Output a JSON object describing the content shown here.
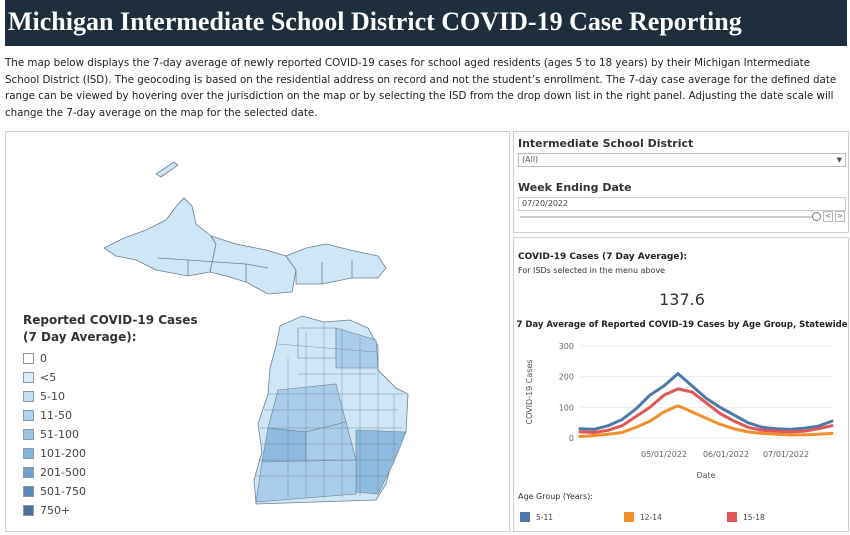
{
  "header": {
    "title": "Michigan Intermediate School District COVID-19 Case Reporting"
  },
  "intro": {
    "text": "The map below displays the 7-day average of newly reported COVID-19 cases for school aged residents (ages 5 to 18 years) by their Michigan Intermediate School District (ISD). The geocoding is based on the residential address on record and not the student’s enrollment. The 7-day case average for the defined date range can be viewed by hovering over the jurisdiction on the map or by selecting the ISD from the drop down list in the right panel. Adjusting the date scale will change the 7-day average on the map for the selected date."
  },
  "map": {
    "legend": {
      "title_line1": "Reported COVID-19 Cases",
      "title_line2": "(7 Day Average):",
      "items": [
        {
          "label": "0",
          "color": "#ffffff"
        },
        {
          "label": "<5",
          "color": "#dcedf8"
        },
        {
          "label": "5-10",
          "color": "#c4e1f2"
        },
        {
          "label": "11-50",
          "color": "#afd3ec"
        },
        {
          "label": "51-100",
          "color": "#9ac4e3"
        },
        {
          "label": "101-200",
          "color": "#86b4d8"
        },
        {
          "label": "201-500",
          "color": "#729fc9"
        },
        {
          "label": "501-750",
          "color": "#5f88b5"
        },
        {
          "label": "750+",
          "color": "#4b6e9b"
        }
      ]
    },
    "colors": {
      "low": "#cfe6f6",
      "mid": "#a9cdea",
      "high": "#8ebbdf",
      "border": "#6b7f90"
    }
  },
  "filters": {
    "isd_label": "Intermediate School District",
    "isd_value": "(All)",
    "week_label": "Week Ending Date",
    "week_value": "07/20/2022"
  },
  "cases_panel": {
    "title": "COVID-19 Cases (7 Day Average):",
    "subtitle": "For ISDs selected in the menu above",
    "value": "137.6",
    "chart_title": "7 Day Average of Reported COVID-19 Cases by Age Group, Statewide",
    "group_title": "Age Group (Years):"
  },
  "chart_data": {
    "type": "line",
    "title": "7 Day Average of Reported COVID-19 Cases by Age Group, Statewide",
    "xlabel": "Date",
    "ylabel": "COVID-19 Cases",
    "ylim": [
      0,
      300
    ],
    "yticks": [
      0,
      100,
      200,
      300
    ],
    "xticks": [
      "05/01/2022",
      "06/01/2022",
      "07/01/2022"
    ],
    "x": [
      "03/20/2022",
      "03/27/2022",
      "04/03/2022",
      "04/10/2022",
      "04/17/2022",
      "04/24/2022",
      "05/01/2022",
      "05/08/2022",
      "05/15/2022",
      "05/22/2022",
      "05/29/2022",
      "06/05/2022",
      "06/12/2022",
      "06/19/2022",
      "06/26/2022",
      "07/03/2022",
      "07/10/2022",
      "07/17/2022",
      "07/24/2022"
    ],
    "series": [
      {
        "name": "5-11",
        "color": "#4e79a7",
        "values": [
          30,
          28,
          40,
          60,
          95,
          140,
          170,
          210,
          170,
          130,
          100,
          75,
          50,
          35,
          30,
          28,
          32,
          38,
          55
        ]
      },
      {
        "name": "12-14",
        "color": "#f28e2b",
        "values": [
          5,
          8,
          12,
          18,
          35,
          55,
          85,
          105,
          85,
          65,
          45,
          30,
          20,
          15,
          12,
          10,
          10,
          12,
          15
        ]
      },
      {
        "name": "15-18",
        "color": "#e15759",
        "values": [
          20,
          18,
          25,
          40,
          70,
          100,
          140,
          160,
          150,
          115,
          80,
          55,
          35,
          25,
          22,
          20,
          22,
          30,
          40
        ]
      }
    ]
  }
}
